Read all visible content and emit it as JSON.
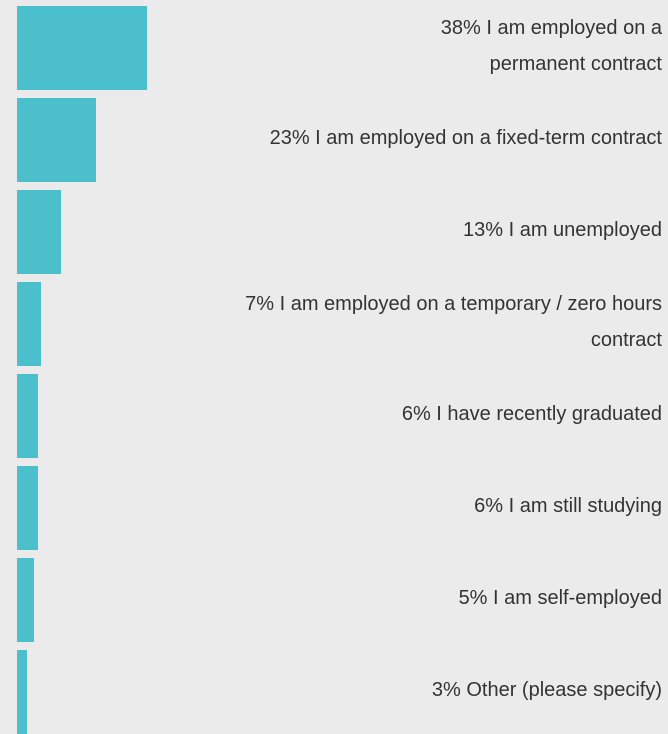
{
  "chart_data": {
    "type": "bar",
    "orientation": "horizontal",
    "color": "#4bbfcc",
    "categories": [
      "I am employed on a permanent contract",
      "I am employed on a fixed-term contract",
      "I am unemployed",
      "I am employed on a temporary / zero hours contract",
      "I have recently graduated",
      "I am still studying",
      "I am self-employed",
      "Other (please specify)"
    ],
    "values": [
      38,
      23,
      13,
      7,
      6,
      6,
      5,
      3
    ],
    "value_labels": [
      "38%",
      "23%",
      "13%",
      "7%",
      "6%",
      "6%",
      "5%",
      "3%"
    ]
  }
}
